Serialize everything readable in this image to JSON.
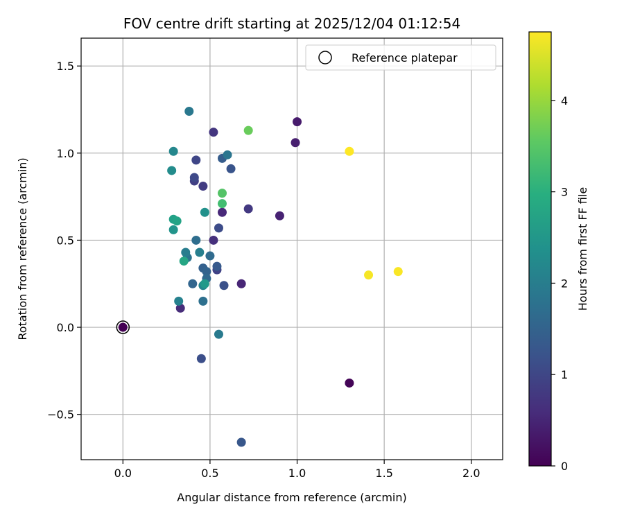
{
  "chart_data": {
    "type": "scatter",
    "title": "FOV centre drift starting at 2025/12/04 01:12:54",
    "xlabel": "Angular distance from reference (arcmin)",
    "ylabel": "Rotation from reference (arcmin)",
    "xlim": [
      -0.24,
      2.18
    ],
    "ylim": [
      -0.76,
      1.66
    ],
    "x_ticks": [
      0.0,
      0.5,
      1.0,
      1.5,
      2.0
    ],
    "x_tick_labels": [
      "0.0",
      "0.5",
      "1.0",
      "1.5",
      "2.0"
    ],
    "y_ticks": [
      -0.5,
      0.0,
      0.5,
      1.0,
      1.5
    ],
    "y_tick_labels": [
      "−0.5",
      "0.0",
      "0.5",
      "1.0",
      "1.5"
    ],
    "grid": true,
    "legend": {
      "label": "Reference platepar",
      "position": "top-right"
    },
    "reference_point": {
      "x": 0.0,
      "y": 0.0
    },
    "colorbar": {
      "label": "Hours from first FF file",
      "range": [
        0,
        4.75
      ],
      "ticks": [
        0,
        1,
        2,
        3,
        4
      ],
      "tick_labels": [
        "0",
        "1",
        "2",
        "3",
        "4"
      ],
      "colormap": "viridis"
    },
    "points": [
      {
        "x": 0.0,
        "y": 0.0,
        "hours": 0.0
      },
      {
        "x": 1.3,
        "y": -0.32,
        "hours": 0.05
      },
      {
        "x": 1.0,
        "y": 1.18,
        "hours": 0.35
      },
      {
        "x": 0.99,
        "y": 1.06,
        "hours": 0.4
      },
      {
        "x": 0.9,
        "y": 0.64,
        "hours": 0.45
      },
      {
        "x": 0.68,
        "y": 0.25,
        "hours": 0.5
      },
      {
        "x": 0.57,
        "y": 0.66,
        "hours": 0.55
      },
      {
        "x": 0.33,
        "y": 0.11,
        "hours": 0.6
      },
      {
        "x": 0.52,
        "y": 0.5,
        "hours": 0.65
      },
      {
        "x": 0.52,
        "y": 1.12,
        "hours": 0.75
      },
      {
        "x": 0.72,
        "y": 0.68,
        "hours": 0.8
      },
      {
        "x": 0.46,
        "y": 0.81,
        "hours": 0.85
      },
      {
        "x": 0.41,
        "y": 0.84,
        "hours": 0.9
      },
      {
        "x": 0.54,
        "y": 0.33,
        "hours": 0.95
      },
      {
        "x": 0.42,
        "y": 0.96,
        "hours": 1.0
      },
      {
        "x": 0.41,
        "y": 0.86,
        "hours": 1.05
      },
      {
        "x": 0.55,
        "y": 0.57,
        "hours": 1.1
      },
      {
        "x": 0.45,
        "y": -0.18,
        "hours": 1.15
      },
      {
        "x": 0.58,
        "y": 0.24,
        "hours": 1.2
      },
      {
        "x": 0.62,
        "y": 0.91,
        "hours": 1.25
      },
      {
        "x": 0.68,
        "y": -0.66,
        "hours": 1.3
      },
      {
        "x": 0.54,
        "y": 0.35,
        "hours": 1.35
      },
      {
        "x": 0.57,
        "y": 0.97,
        "hours": 1.4
      },
      {
        "x": 0.46,
        "y": 0.34,
        "hours": 1.45
      },
      {
        "x": 0.48,
        "y": 0.32,
        "hours": 1.5
      },
      {
        "x": 0.4,
        "y": 0.25,
        "hours": 1.55
      },
      {
        "x": 0.48,
        "y": 0.28,
        "hours": 1.6
      },
      {
        "x": 0.5,
        "y": 0.41,
        "hours": 1.65
      },
      {
        "x": 0.42,
        "y": 0.5,
        "hours": 1.7
      },
      {
        "x": 0.46,
        "y": 0.15,
        "hours": 1.75
      },
      {
        "x": 0.37,
        "y": 0.4,
        "hours": 1.8
      },
      {
        "x": 0.6,
        "y": 0.99,
        "hours": 1.85
      },
      {
        "x": 0.38,
        "y": 1.24,
        "hours": 1.9
      },
      {
        "x": 0.55,
        "y": -0.04,
        "hours": 1.95
      },
      {
        "x": 0.36,
        "y": 0.43,
        "hours": 2.0
      },
      {
        "x": 0.44,
        "y": 0.43,
        "hours": 2.05
      },
      {
        "x": 0.32,
        "y": 0.15,
        "hours": 2.1
      },
      {
        "x": 0.46,
        "y": 0.24,
        "hours": 2.15
      },
      {
        "x": 0.29,
        "y": 1.01,
        "hours": 2.2
      },
      {
        "x": 0.28,
        "y": 0.9,
        "hours": 2.3
      },
      {
        "x": 0.47,
        "y": 0.66,
        "hours": 2.4
      },
      {
        "x": 0.29,
        "y": 0.56,
        "hours": 2.45
      },
      {
        "x": 0.47,
        "y": 0.25,
        "hours": 2.55
      },
      {
        "x": 0.29,
        "y": 0.62,
        "hours": 2.7
      },
      {
        "x": 0.31,
        "y": 0.61,
        "hours": 2.75
      },
      {
        "x": 0.35,
        "y": 0.38,
        "hours": 2.8
      },
      {
        "x": 0.57,
        "y": 0.71,
        "hours": 3.3
      },
      {
        "x": 0.57,
        "y": 0.77,
        "hours": 3.45
      },
      {
        "x": 0.72,
        "y": 1.13,
        "hours": 3.65
      },
      {
        "x": 1.3,
        "y": 1.01,
        "hours": 4.75
      },
      {
        "x": 1.41,
        "y": 0.3,
        "hours": 4.7
      },
      {
        "x": 1.58,
        "y": 0.32,
        "hours": 4.72
      }
    ]
  }
}
